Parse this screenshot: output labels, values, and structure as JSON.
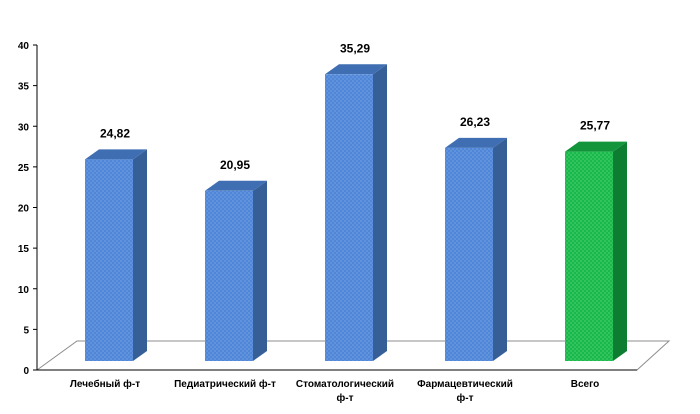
{
  "chart_data": {
    "type": "bar",
    "categories": [
      [
        "Лечебный ф-т"
      ],
      [
        "Педиатрический  ф-т"
      ],
      [
        "Стоматологический",
        "ф-т"
      ],
      [
        "Фармацевтический",
        "ф-т"
      ],
      [
        "Всего"
      ]
    ],
    "values": [
      24.82,
      20.95,
      35.29,
      26.23,
      25.77
    ],
    "value_labels": [
      "24,82",
      "20,95",
      "35,29",
      "26,23",
      "25,77"
    ],
    "y_ticks": [
      "0",
      "5",
      "10",
      "15",
      "20",
      "25",
      "30",
      "35",
      "40"
    ],
    "ylim": [
      0,
      40
    ],
    "title": "",
    "xlabel": "",
    "ylabel": "",
    "grid": false,
    "legend": false,
    "colors": {
      "bar_front": "#4f86d8",
      "bar_side": "#365f97",
      "bar_top": "#3f6eb3",
      "total_front": "#19b84a",
      "total_side": "#0d7d31",
      "total_top": "#13963b",
      "floor_stroke": "#8c8c8c",
      "axis": "#000000"
    }
  }
}
